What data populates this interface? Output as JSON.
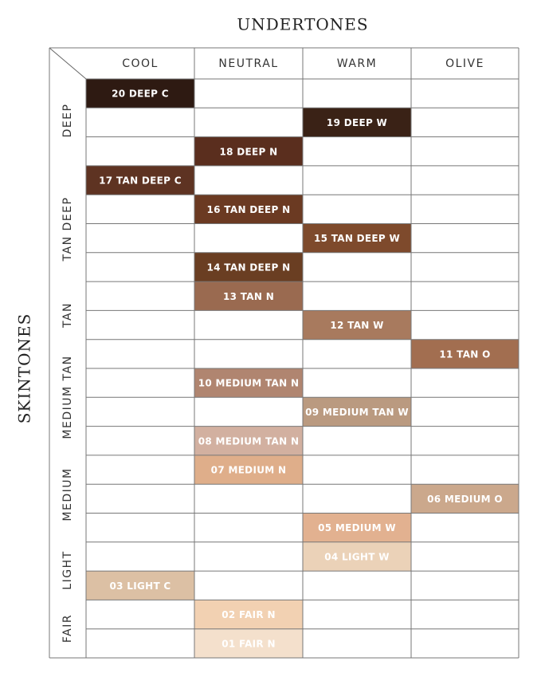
{
  "title": "UNDERTONES",
  "side_title": "SKINTONES",
  "columns": [
    "COOL",
    "NEUTRAL",
    "WARM",
    "OLIVE"
  ],
  "row_groups": [
    "DEEP",
    "TAN DEEP",
    "TAN",
    "MEDIUM TAN",
    "MEDIUM",
    "LIGHT",
    "FAIR"
  ],
  "rows": [
    [
      {
        "label": "20 DEEP C",
        "color": "#2e1a12"
      },
      null,
      null,
      null
    ],
    [
      null,
      null,
      {
        "label": "19 DEEP W",
        "color": "#3a2216"
      },
      null
    ],
    [
      null,
      {
        "label": "18 DEEP N",
        "color": "#5a2e1e"
      },
      null,
      null
    ],
    [
      {
        "label": "17 TAN DEEP C",
        "color": "#5e3322"
      },
      null,
      null,
      null
    ],
    [
      null,
      {
        "label": "16 TAN DEEP N",
        "color": "#6b3a22"
      },
      null,
      null
    ],
    [
      null,
      null,
      {
        "label": "15 TAN DEEP W",
        "color": "#7e4a2c"
      },
      null
    ],
    [
      null,
      {
        "label": "14 TAN DEEP N",
        "color": "#6a3e22"
      },
      null,
      null
    ],
    [
      null,
      {
        "label": "13 TAN N",
        "color": "#9a6a50"
      },
      null,
      null
    ],
    [
      null,
      null,
      {
        "label": "12 TAN W",
        "color": "#a87a5e"
      },
      null
    ],
    [
      null,
      null,
      null,
      {
        "label": "11 TAN O",
        "color": "#a26e50"
      }
    ],
    [
      null,
      {
        "label": "10 MEDIUM TAN N",
        "color": "#b08570"
      },
      null,
      null
    ],
    [
      null,
      null,
      {
        "label": "09 MEDIUM TAN W",
        "color": "#ba9a80"
      },
      null
    ],
    [
      null,
      {
        "label": "08 MEDIUM TAN N",
        "color": "#d2b0a0"
      },
      null,
      null
    ],
    [
      null,
      {
        "label": "07 MEDIUM N",
        "color": "#dfae8a"
      },
      null,
      null
    ],
    [
      null,
      null,
      null,
      {
        "label": "06 MEDIUM O",
        "color": "#cba88c"
      }
    ],
    [
      null,
      null,
      {
        "label": "05 MEDIUM W",
        "color": "#e2b190"
      },
      null
    ],
    [
      null,
      null,
      {
        "label": "04 LIGHT W",
        "color": "#ebd2b8"
      },
      null
    ],
    [
      {
        "label": "03 LIGHT C",
        "color": "#dcc0a4"
      },
      null,
      null,
      null
    ],
    [
      null,
      {
        "label": "02 FAIR N",
        "color": "#f2d1b2"
      },
      null,
      null
    ],
    [
      null,
      {
        "label": "01 FAIR N",
        "color": "#f4e0cc"
      },
      null,
      null
    ]
  ]
}
